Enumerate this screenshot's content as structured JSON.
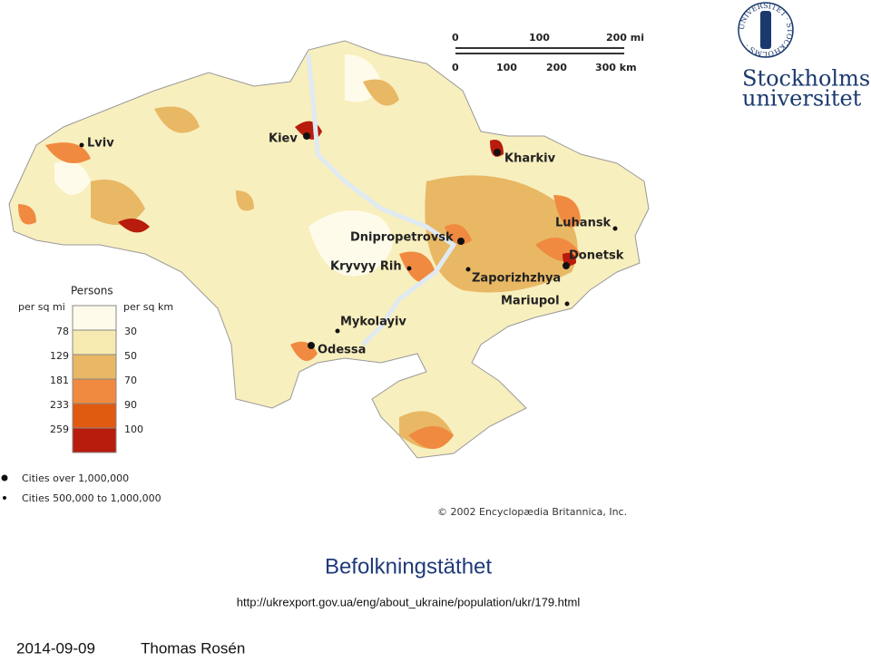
{
  "map": {
    "scale": {
      "mi_labels": [
        "0",
        "100",
        "200 mi"
      ],
      "km_labels": [
        "0",
        "100",
        "200",
        "300 km"
      ]
    },
    "cities": [
      "Lviv",
      "Kiev",
      "Kharkiv",
      "Luhansk",
      "Donetsk",
      "Dnipropetrovsk",
      "Kryvyy Rih",
      "Zaporizhzhya",
      "Mariupol",
      "Mykolayiv",
      "Odessa"
    ],
    "legend": {
      "title": "Persons",
      "left_header": "per sq mi",
      "right_header": "per sq km",
      "per_sq_mi": [
        "78",
        "129",
        "181",
        "233",
        "259"
      ],
      "per_sq_km": [
        "30",
        "50",
        "70",
        "90",
        "100"
      ],
      "symbols": [
        "Cities over 1,000,000",
        "Cities 500,000 to 1,000,000"
      ]
    },
    "credit": "© 2002 Encyclopædia Britannica, Inc."
  },
  "logo": {
    "seal_text": "UNIVERSITET · STOCKHOLMS ·",
    "line1": "Stockholms",
    "line2": "universitet"
  },
  "slide": {
    "title": "Befolkningstäthet",
    "source": "http://ukrexport.gov.ua/eng/about_ukraine/population/ukr/179.html",
    "date": "2014-09-09",
    "author": "Thomas Rosén"
  }
}
